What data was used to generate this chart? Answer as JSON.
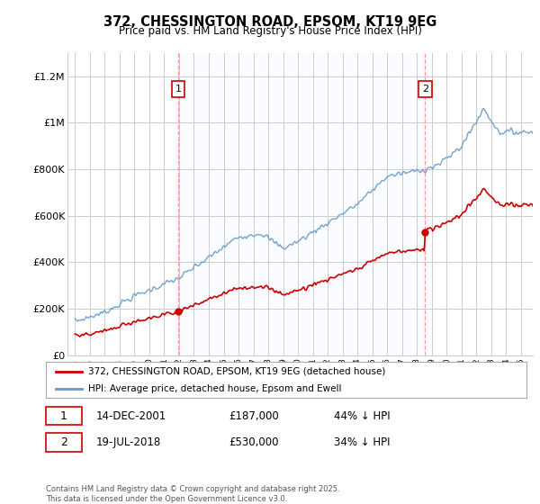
{
  "title": "372, CHESSINGTON ROAD, EPSOM, KT19 9EG",
  "subtitle": "Price paid vs. HM Land Registry's House Price Index (HPI)",
  "ylabel_ticks": [
    "£0",
    "£200K",
    "£400K",
    "£600K",
    "£800K",
    "£1M",
    "£1.2M"
  ],
  "ylim": [
    0,
    1300000
  ],
  "yticks": [
    0,
    200000,
    400000,
    600000,
    800000,
    1000000,
    1200000
  ],
  "xlim_start": 1994.5,
  "xlim_end": 2025.8,
  "sale1_date": "14-DEC-2001",
  "sale1_price": 187000,
  "sale1_pct": "44% ↓ HPI",
  "sale1_x": 2001.95,
  "sale2_date": "19-JUL-2018",
  "sale2_price": 530000,
  "sale2_pct": "34% ↓ HPI",
  "sale2_x": 2018.54,
  "line1_label": "372, CHESSINGTON ROAD, EPSOM, KT19 9EG (detached house)",
  "line2_label": "HPI: Average price, detached house, Epsom and Ewell",
  "line1_color": "#cc0000",
  "line2_color": "#6699cc",
  "shade_color": "#ddeeff",
  "vline_color": "#ff9999",
  "annotation_box_color": "#cc0000",
  "footer": "Contains HM Land Registry data © Crown copyright and database right 2025.\nThis data is licensed under the Open Government Licence v3.0.",
  "background_color": "#ffffff",
  "grid_color": "#cccccc"
}
